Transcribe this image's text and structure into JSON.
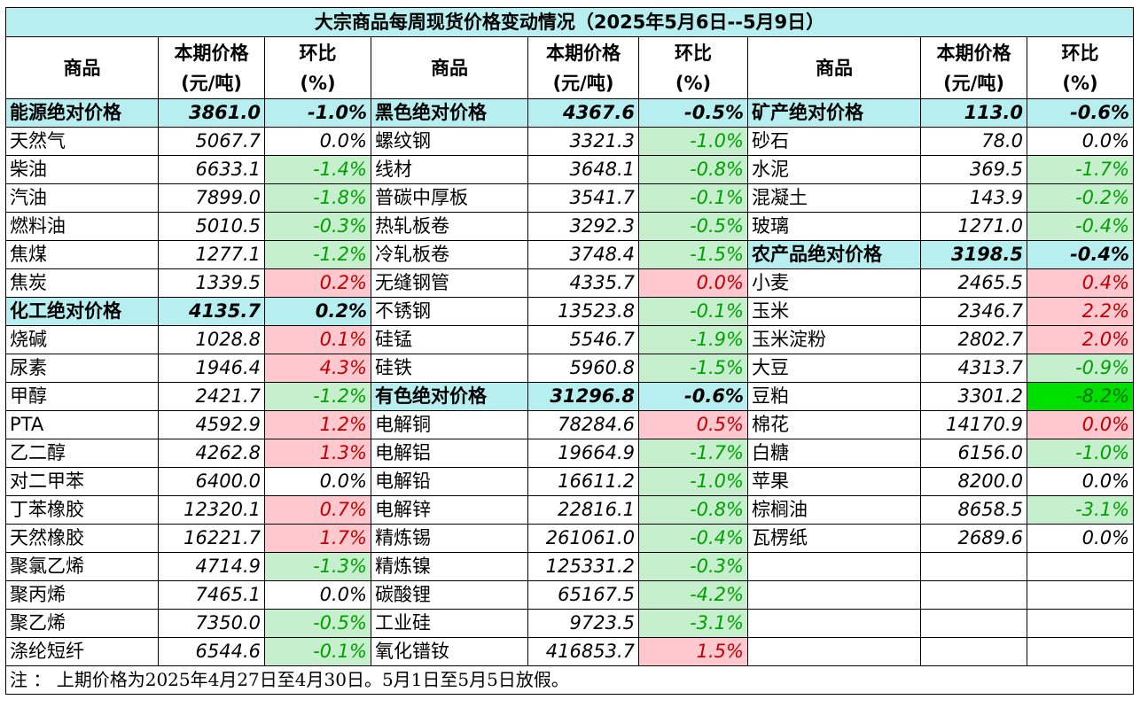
{
  "table": {
    "title": "大宗商品每周现货价格变动情况（2025年5月6日--5月9日）",
    "headers": [
      [
        "商品"
      ],
      [
        "本期价格",
        "(元/吨)"
      ],
      [
        "环比",
        "(%)"
      ],
      [
        "商品"
      ],
      [
        "本期价格",
        "(元/吨)"
      ],
      [
        "环比",
        "(%)"
      ],
      [
        "商品"
      ],
      [
        "本期价格",
        "(元/吨)"
      ],
      [
        "环比",
        "(%)"
      ]
    ],
    "fills": {
      "section": "#b7eef0",
      "up": "#ffc7ce",
      "down": "#c6efce",
      "strong": "#00e000"
    },
    "inks": {
      "up": "#c00000",
      "down": "#00a000",
      "strong": "#007000"
    },
    "rows": [
      [
        {
          "name": "能源绝对价格",
          "price": "3861.0",
          "change": "-1.0%",
          "kind": "section"
        },
        {
          "name": "黑色绝对价格",
          "price": "4367.6",
          "change": "-0.5%",
          "kind": "section"
        },
        {
          "name": "矿产绝对价格",
          "price": "113.0",
          "change": "-0.6%",
          "kind": "section"
        }
      ],
      [
        {
          "name": "天然气",
          "price": "5067.7",
          "change": "0.0%"
        },
        {
          "name": "螺纹钢",
          "price": "3321.3",
          "change": "-1.0%",
          "kind": "down"
        },
        {
          "name": "砂石",
          "price": "78.0",
          "change": "0.0%"
        }
      ],
      [
        {
          "name": "柴油",
          "price": "6633.1",
          "change": "-1.4%",
          "kind": "down"
        },
        {
          "name": "线材",
          "price": "3648.1",
          "change": "-0.8%",
          "kind": "down"
        },
        {
          "name": "水泥",
          "price": "369.5",
          "change": "-1.7%",
          "kind": "down"
        }
      ],
      [
        {
          "name": "汽油",
          "price": "7899.0",
          "change": "-1.8%",
          "kind": "down"
        },
        {
          "name": "普碳中厚板",
          "price": "3541.7",
          "change": "-0.1%",
          "kind": "down"
        },
        {
          "name": "混凝土",
          "price": "143.9",
          "change": "-0.2%",
          "kind": "down"
        }
      ],
      [
        {
          "name": "燃料油",
          "price": "5010.5",
          "change": "-0.3%",
          "kind": "down"
        },
        {
          "name": "热轧板卷",
          "price": "3292.3",
          "change": "-0.5%",
          "kind": "down"
        },
        {
          "name": "玻璃",
          "price": "1271.0",
          "change": "-0.4%",
          "kind": "down"
        }
      ],
      [
        {
          "name": "焦煤",
          "price": "1277.1",
          "change": "-1.2%",
          "kind": "down"
        },
        {
          "name": "冷轧板卷",
          "price": "3748.4",
          "change": "-1.5%",
          "kind": "down"
        },
        {
          "name": "农产品绝对价格",
          "price": "3198.5",
          "change": "-0.4%",
          "kind": "section"
        }
      ],
      [
        {
          "name": "焦炭",
          "price": "1339.5",
          "change": "0.2%",
          "kind": "up"
        },
        {
          "name": "无缝钢管",
          "price": "4335.7",
          "change": "0.0%",
          "kind": "up"
        },
        {
          "name": "小麦",
          "price": "2465.5",
          "change": "0.4%",
          "kind": "up"
        }
      ],
      [
        {
          "name": "化工绝对价格",
          "price": "4135.7",
          "change": "0.2%",
          "kind": "section"
        },
        {
          "name": "不锈钢",
          "price": "13523.8",
          "change": "-0.1%",
          "kind": "down"
        },
        {
          "name": "玉米",
          "price": "2346.7",
          "change": "2.2%",
          "kind": "up"
        }
      ],
      [
        {
          "name": "烧碱",
          "price": "1028.8",
          "change": "0.1%",
          "kind": "up"
        },
        {
          "name": "硅锰",
          "price": "5546.7",
          "change": "-1.9%",
          "kind": "down"
        },
        {
          "name": "玉米淀粉",
          "price": "2802.7",
          "change": "2.0%",
          "kind": "up"
        }
      ],
      [
        {
          "name": "尿素",
          "price": "1946.4",
          "change": "4.3%",
          "kind": "up"
        },
        {
          "name": "硅铁",
          "price": "5960.8",
          "change": "-1.5%",
          "kind": "down"
        },
        {
          "name": "大豆",
          "price": "4313.7",
          "change": "-0.9%",
          "kind": "down"
        }
      ],
      [
        {
          "name": "甲醇",
          "price": "2421.7",
          "change": "-1.2%",
          "kind": "down"
        },
        {
          "name": "有色绝对价格",
          "price": "31296.8",
          "change": "-0.6%",
          "kind": "section"
        },
        {
          "name": "豆粕",
          "price": "3301.2",
          "change": "-8.2%",
          "kind": "strong"
        }
      ],
      [
        {
          "name": "PTA",
          "price": "4592.9",
          "change": "1.2%",
          "kind": "up"
        },
        {
          "name": "电解铜",
          "price": "78284.6",
          "change": "0.5%",
          "kind": "up"
        },
        {
          "name": "棉花",
          "price": "14170.9",
          "change": "0.0%",
          "kind": "up"
        }
      ],
      [
        {
          "name": "乙二醇",
          "price": "4262.8",
          "change": "1.3%",
          "kind": "up"
        },
        {
          "name": "电解铝",
          "price": "19664.9",
          "change": "-1.7%",
          "kind": "down"
        },
        {
          "name": "白糖",
          "price": "6156.0",
          "change": "-1.0%",
          "kind": "down"
        }
      ],
      [
        {
          "name": "对二甲苯",
          "price": "6400.0",
          "change": "0.0%"
        },
        {
          "name": "电解铅",
          "price": "16611.2",
          "change": "-1.0%",
          "kind": "down"
        },
        {
          "name": "苹果",
          "price": "8200.0",
          "change": "0.0%"
        }
      ],
      [
        {
          "name": "丁苯橡胶",
          "price": "12320.1",
          "change": "0.7%",
          "kind": "up"
        },
        {
          "name": "电解锌",
          "price": "22816.1",
          "change": "-0.8%",
          "kind": "down"
        },
        {
          "name": "棕榈油",
          "price": "8658.5",
          "change": "-3.1%",
          "kind": "down"
        }
      ],
      [
        {
          "name": "天然橡胶",
          "price": "16221.7",
          "change": "1.7%",
          "kind": "up"
        },
        {
          "name": "精炼锡",
          "price": "261061.0",
          "change": "-0.4%",
          "kind": "down"
        },
        {
          "name": "瓦楞纸",
          "price": "2689.6",
          "change": "0.0%"
        }
      ],
      [
        {
          "name": "聚氯乙烯",
          "price": "4714.9",
          "change": "-1.3%",
          "kind": "down"
        },
        {
          "name": "精炼镍",
          "price": "125331.2",
          "change": "-0.3%",
          "kind": "down"
        }
      ],
      [
        {
          "name": "聚丙烯",
          "price": "7465.1",
          "change": "0.0%"
        },
        {
          "name": "碳酸锂",
          "price": "65167.5",
          "change": "-4.2%",
          "kind": "down"
        }
      ],
      [
        {
          "name": "聚乙烯",
          "price": "7350.0",
          "change": "-0.5%",
          "kind": "down"
        },
        {
          "name": "工业硅",
          "price": "9723.5",
          "change": "-3.1%",
          "kind": "down"
        }
      ],
      [
        {
          "name": "涤纶短纤",
          "price": "6544.6",
          "change": "-0.1%",
          "kind": "down"
        },
        {
          "name": "氧化镨钕",
          "price": "416853.7",
          "change": "1.5%",
          "kind": "up"
        }
      ]
    ],
    "note": "注 ： 上期价格为2025年4月27日至4月30日。5月1日至5月5日放假。"
  }
}
